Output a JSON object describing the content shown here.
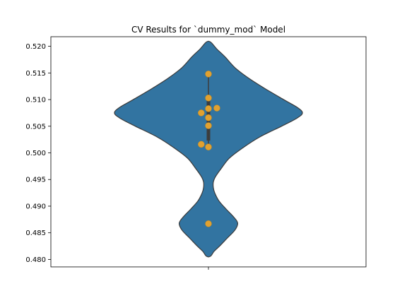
{
  "chart_data": {
    "type": "violin",
    "title": "CV Results for `dummy_mod` Model",
    "xlabel": "",
    "ylabel": "",
    "ylim": [
      0.4786,
      0.5218
    ],
    "yticks": [
      "0.480",
      "0.485",
      "0.490",
      "0.495",
      "0.500",
      "0.505",
      "0.510",
      "0.515",
      "0.520"
    ],
    "violin_color": "#3274a1",
    "point_color": "#e1a130",
    "box": {
      "q1": 0.5023,
      "q3": 0.5098,
      "min": 0.5012,
      "max": 0.5148
    },
    "points": [
      {
        "x": 0.0,
        "y": 0.5148
      },
      {
        "x": 0.0,
        "y": 0.5103
      },
      {
        "x": 0.0,
        "y": 0.5083
      },
      {
        "x": 0.14,
        "y": 0.5084
      },
      {
        "x": -0.12,
        "y": 0.5075
      },
      {
        "x": 0.0,
        "y": 0.5066
      },
      {
        "x": 0.0,
        "y": 0.5051
      },
      {
        "x": -0.12,
        "y": 0.5016
      },
      {
        "x": 0.0,
        "y": 0.5011
      },
      {
        "x": 0.0,
        "y": 0.4867
      }
    ],
    "violin_profile": [
      [
        0.5208,
        0.03
      ],
      [
        0.5195,
        0.12
      ],
      [
        0.518,
        0.24
      ],
      [
        0.516,
        0.38
      ],
      [
        0.514,
        0.58
      ],
      [
        0.512,
        0.82
      ],
      [
        0.51,
        1.08
      ],
      [
        0.5085,
        1.28
      ],
      [
        0.5075,
        1.35
      ],
      [
        0.5065,
        1.27
      ],
      [
        0.505,
        1.05
      ],
      [
        0.503,
        0.74
      ],
      [
        0.501,
        0.5
      ],
      [
        0.499,
        0.3
      ],
      [
        0.497,
        0.18
      ],
      [
        0.4955,
        0.1
      ],
      [
        0.4945,
        0.07
      ],
      [
        0.4935,
        0.07
      ],
      [
        0.4925,
        0.09
      ],
      [
        0.491,
        0.15
      ],
      [
        0.4895,
        0.25
      ],
      [
        0.488,
        0.36
      ],
      [
        0.4868,
        0.42
      ],
      [
        0.4855,
        0.38
      ],
      [
        0.484,
        0.27
      ],
      [
        0.4825,
        0.16
      ],
      [
        0.4815,
        0.08
      ],
      [
        0.4806,
        0.03
      ]
    ]
  }
}
